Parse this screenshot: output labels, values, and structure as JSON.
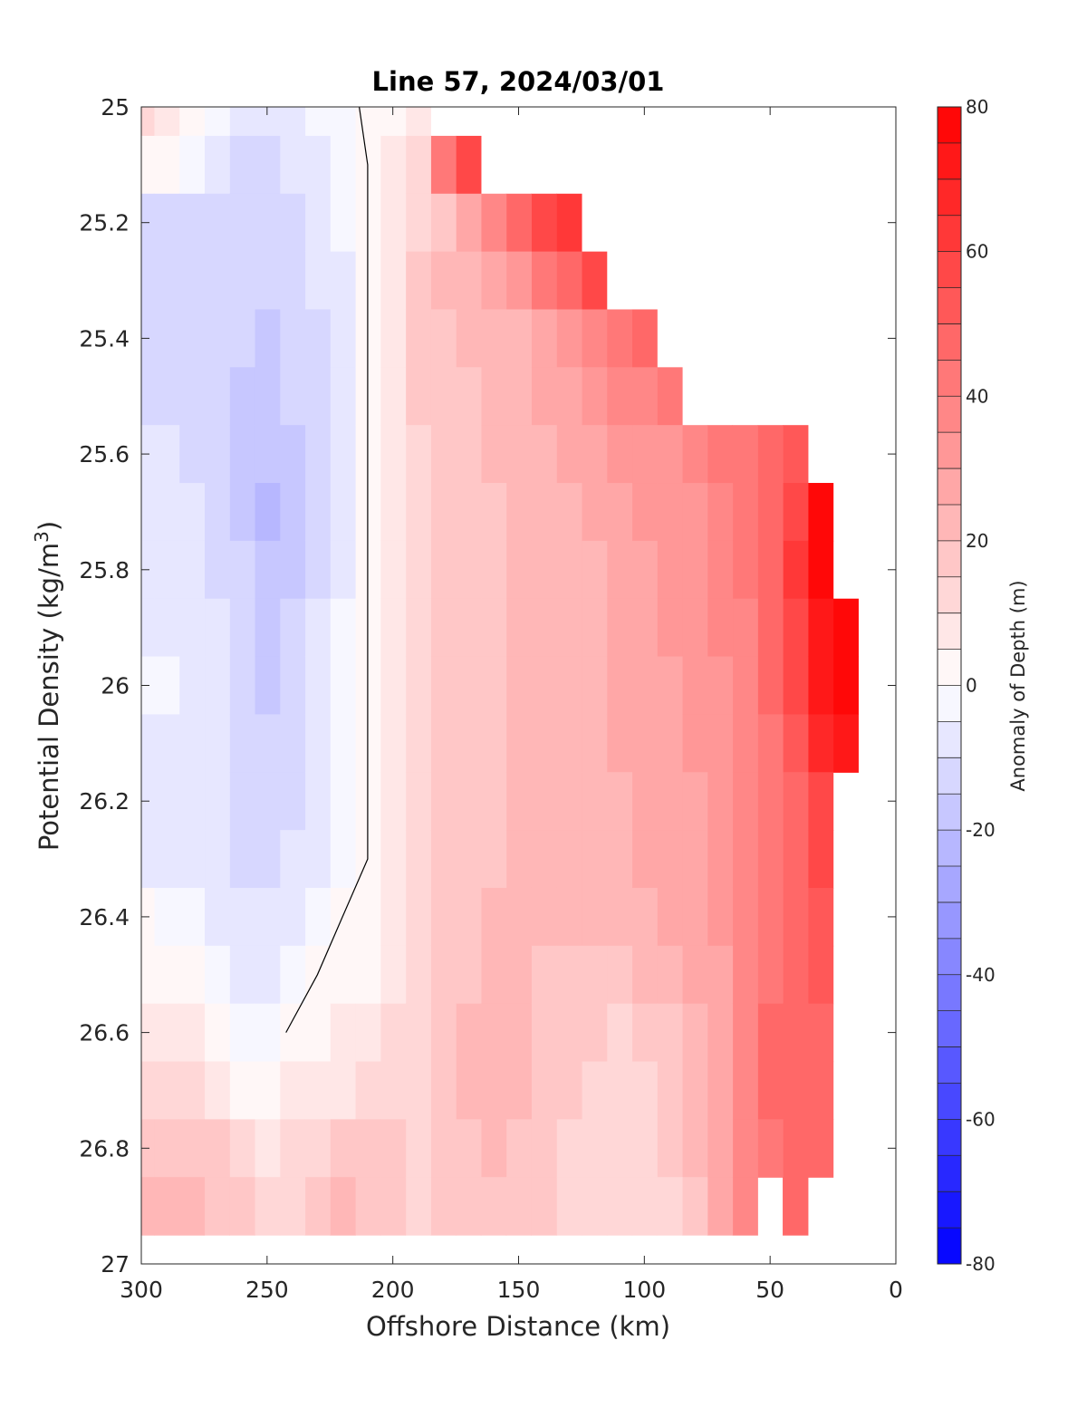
{
  "chart_data": {
    "type": "heatmap",
    "title": "Line 57, 2024/03/01",
    "xlabel": "Offshore Distance (km)",
    "ylabel_main": "Potential Density (kg/m",
    "ylabel_sup": "3",
    "ylabel_end": ")",
    "colorbar_label": "Anomaly of Depth (m)",
    "x_reversed": true,
    "y_reversed": true,
    "xlim": [
      0,
      300
    ],
    "ylim": [
      25,
      27
    ],
    "x_ticks": [
      "300",
      "250",
      "200",
      "150",
      "100",
      "50",
      "0"
    ],
    "y_ticks": [
      "25",
      "25.2",
      "25.4",
      "25.6",
      "25.8",
      "26",
      "26.2",
      "26.4",
      "26.6",
      "26.8",
      "27"
    ],
    "colorbar_range": [
      -80,
      80
    ],
    "colorbar_step": 5,
    "colorbar_ticks": [
      "80",
      "60",
      "40",
      "20",
      "0",
      "-20",
      "-40",
      "-60",
      "-80"
    ],
    "colormap": {
      "negative_end": "#0000ff",
      "zero": "#ffffff",
      "positive_end": "#ff0000"
    },
    "zero_contour_color": "#000000",
    "x": [
      10,
      20,
      30,
      40,
      50,
      60,
      70,
      80,
      90,
      100,
      110,
      120,
      130,
      140,
      150,
      160,
      170,
      180,
      190,
      200,
      210,
      220,
      230,
      240,
      250,
      260,
      270,
      280,
      290,
      300
    ],
    "y": [
      25.0,
      25.1,
      25.2,
      25.3,
      25.4,
      25.5,
      25.6,
      25.7,
      25.8,
      25.9,
      26.0,
      26.1,
      26.2,
      26.3,
      26.4,
      26.5,
      26.6,
      26.7,
      26.8,
      26.9
    ],
    "data_coverage_min_x_km": [
      190,
      175,
      130,
      125,
      95,
      80,
      35,
      25,
      20,
      10,
      10,
      10,
      20,
      20,
      20,
      20,
      20,
      20,
      35,
      50
    ],
    "values_grid_rows_by_density": [
      [
        null,
        null,
        null,
        null,
        null,
        null,
        null,
        null,
        null,
        null,
        null,
        null,
        null,
        null,
        null,
        null,
        null,
        null,
        8,
        4,
        1,
        -2,
        -4,
        -6,
        -8,
        -6,
        -4,
        1,
        6,
        10
      ],
      [
        null,
        null,
        null,
        null,
        null,
        null,
        null,
        null,
        null,
        null,
        null,
        null,
        null,
        null,
        null,
        null,
        55,
        40,
        12,
        5,
        0,
        -4,
        -7,
        -9,
        -11,
        -12,
        -9,
        -3,
        1,
        4
      ],
      [
        null,
        null,
        null,
        null,
        null,
        null,
        null,
        null,
        null,
        null,
        null,
        null,
        62,
        55,
        45,
        35,
        25,
        18,
        12,
        5,
        0,
        -5,
        -9,
        -12,
        -13,
        -14,
        -12,
        -11,
        -12,
        -12
      ],
      [
        null,
        null,
        null,
        null,
        null,
        null,
        null,
        null,
        null,
        null,
        null,
        55,
        48,
        40,
        32,
        28,
        24,
        20,
        15,
        6,
        0,
        -6,
        -10,
        -13,
        -14,
        -14,
        -13,
        -12,
        -13,
        -13
      ],
      [
        null,
        null,
        null,
        null,
        null,
        null,
        null,
        null,
        null,
        45,
        40,
        35,
        30,
        28,
        24,
        22,
        20,
        18,
        15,
        6,
        0,
        -7,
        -11,
        -14,
        -17,
        -15,
        -13,
        -12,
        -13,
        -13
      ],
      [
        null,
        null,
        null,
        null,
        null,
        null,
        null,
        null,
        42,
        38,
        35,
        30,
        27,
        25,
        22,
        20,
        19,
        17,
        15,
        6,
        0,
        -7,
        -11,
        -15,
        -19,
        -16,
        -13,
        -12,
        -12,
        -12
      ],
      [
        null,
        null,
        null,
        50,
        45,
        42,
        40,
        37,
        34,
        32,
        30,
        27,
        25,
        24,
        22,
        20,
        18,
        17,
        14,
        6,
        0,
        -7,
        -11,
        -16,
        -20,
        -16,
        -13,
        -11,
        -10,
        -10
      ],
      [
        null,
        null,
        75,
        55,
        45,
        40,
        37,
        34,
        32,
        30,
        27,
        25,
        24,
        22,
        20,
        19,
        17,
        16,
        14,
        6,
        0,
        -7,
        -12,
        -17,
        -21,
        -16,
        -12,
        -10,
        -9,
        -9
      ],
      [
        null,
        null,
        78,
        60,
        48,
        40,
        36,
        33,
        30,
        28,
        26,
        24,
        22,
        21,
        20,
        19,
        17,
        16,
        13,
        6,
        0,
        -6,
        -12,
        -17,
        -20,
        -15,
        -11,
        -8,
        -7,
        -7
      ],
      [
        null,
        78,
        72,
        58,
        46,
        39,
        35,
        32,
        30,
        28,
        25,
        23,
        22,
        21,
        20,
        19,
        17,
        15,
        13,
        6,
        0,
        -5,
        -10,
        -15,
        -18,
        -14,
        -10,
        -7,
        -6,
        -6
      ],
      [
        null,
        75,
        70,
        56,
        45,
        38,
        34,
        31,
        29,
        27,
        25,
        23,
        22,
        21,
        20,
        18,
        17,
        15,
        12,
        5,
        0,
        -5,
        -9,
        -13,
        -16,
        -13,
        -10,
        -7,
        -5,
        -5
      ],
      [
        null,
        70,
        65,
        52,
        43,
        37,
        33,
        30,
        28,
        26,
        25,
        24,
        22,
        22,
        21,
        19,
        17,
        15,
        12,
        5,
        0,
        -4,
        -8,
        -12,
        -15,
        -12,
        -9,
        -7,
        -6,
        -6
      ],
      [
        null,
        null,
        58,
        48,
        42,
        36,
        32,
        29,
        27,
        25,
        24,
        23,
        22,
        21,
        20,
        19,
        17,
        15,
        12,
        5,
        0,
        -4,
        -7,
        -11,
        -14,
        -12,
        -9,
        -7,
        -8,
        -7
      ],
      [
        null,
        null,
        55,
        46,
        40,
        35,
        31,
        28,
        26,
        25,
        24,
        23,
        22,
        21,
        20,
        19,
        17,
        15,
        12,
        5,
        0,
        -3,
        -6,
        -9,
        -13,
        -11,
        -8,
        -6,
        -6,
        -6
      ],
      [
        null,
        null,
        52,
        46,
        41,
        35,
        30,
        27,
        25,
        23,
        22,
        21,
        20,
        21,
        21,
        20,
        18,
        16,
        13,
        6,
        2,
        0,
        -3,
        -7,
        -10,
        -9,
        -6,
        -3,
        -1,
        0
      ],
      [
        null,
        null,
        50,
        47,
        43,
        36,
        29,
        25,
        22,
        20,
        18,
        16,
        17,
        19,
        20,
        21,
        19,
        16,
        13,
        8,
        4,
        2,
        0,
        -3,
        -7,
        -6,
        -3,
        0,
        1,
        0
      ],
      [
        null,
        null,
        48,
        48,
        45,
        37,
        29,
        24,
        19,
        15,
        14,
        15,
        17,
        19,
        21,
        22,
        20,
        17,
        13,
        10,
        8,
        5,
        3,
        1,
        -3,
        -1,
        2,
        5,
        7,
        9
      ],
      [
        null,
        null,
        48,
        47,
        45,
        38,
        28,
        22,
        17,
        14,
        13,
        14,
        15,
        18,
        20,
        21,
        20,
        17,
        13,
        12,
        11,
        9,
        7,
        5,
        2,
        4,
        7,
        10,
        12,
        14
      ],
      [
        null,
        null,
        47,
        46,
        44,
        38,
        27,
        20,
        15,
        13,
        12,
        13,
        14,
        17,
        19,
        20,
        19,
        17,
        14,
        15,
        17,
        16,
        14,
        11,
        9,
        11,
        15,
        18,
        19,
        19
      ],
      [
        null,
        null,
        null,
        45,
        null,
        36,
        25,
        18,
        12,
        10,
        10,
        12,
        14,
        16,
        18,
        19,
        18,
        16,
        13,
        17,
        19,
        20,
        18,
        14,
        13,
        15,
        18,
        22,
        22,
        23
      ]
    ]
  }
}
